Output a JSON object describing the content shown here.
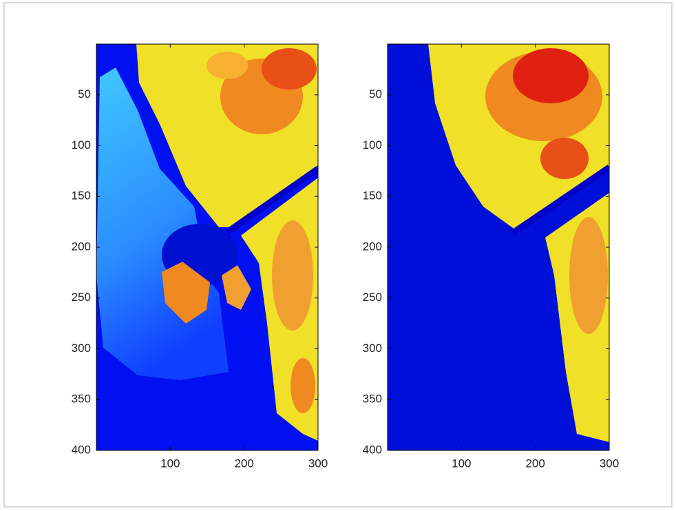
{
  "chart_data": [
    {
      "type": "image",
      "xlim": [
        0,
        300
      ],
      "ylim": [
        0,
        400
      ],
      "y_reversed": true,
      "xticks": [
        100,
        200,
        300
      ],
      "yticks": [
        50,
        100,
        150,
        200,
        250,
        300,
        350,
        400
      ]
    },
    {
      "type": "image",
      "xlim": [
        0,
        300
      ],
      "ylim": [
        0,
        400
      ],
      "y_reversed": true,
      "xticks": [
        100,
        200,
        300
      ],
      "yticks": [
        50,
        100,
        150,
        200,
        250,
        300,
        350,
        400
      ]
    }
  ]
}
